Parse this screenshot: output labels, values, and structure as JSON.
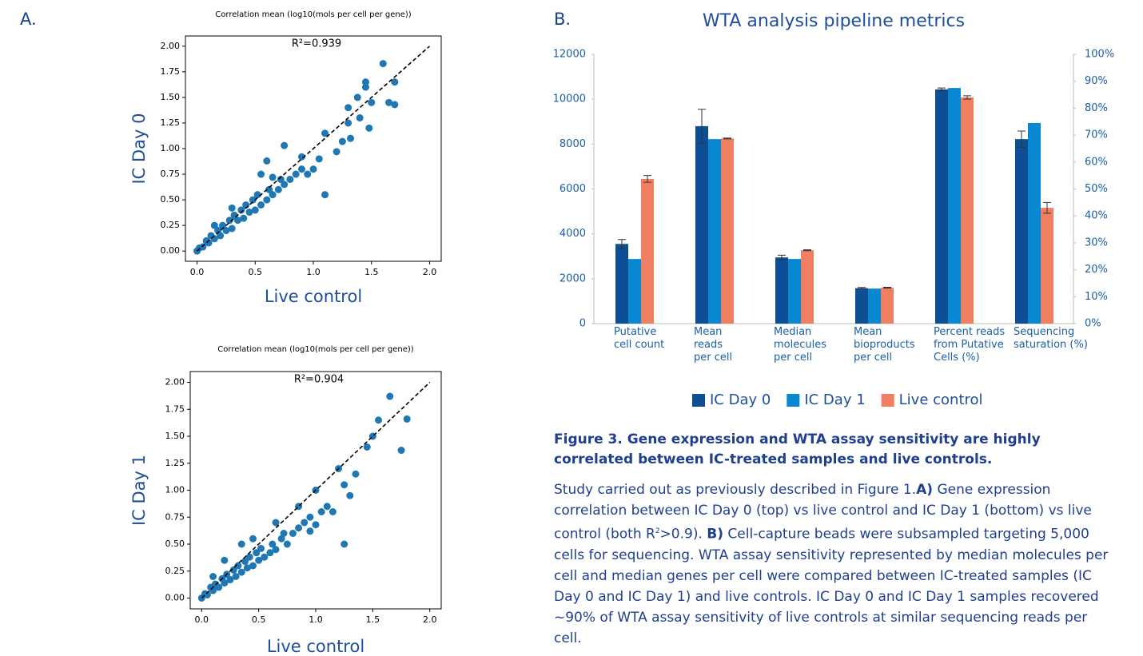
{
  "panel_a_label": "A.",
  "panel_b_label": "B.",
  "chart_data": [
    {
      "type": "scatter",
      "title": "Correlation mean (log10(mols per cell per gene))",
      "annotation": "R²=0.939",
      "x_label": "Live control",
      "y_label": "IC Day 0",
      "color": "#1f77b4",
      "xlim": [
        -0.1,
        2.1
      ],
      "ylim": [
        -0.1,
        2.1
      ],
      "xticks": [
        {
          "value": 0,
          "label": "0.0"
        },
        0.5,
        {
          "value": 1,
          "label": "1.0"
        },
        1.5,
        {
          "value": 2,
          "label": "2.0"
        }
      ],
      "yticks": [
        {
          "value": 0,
          "label": "0.00"
        },
        0.25,
        {
          "value": 0.5,
          "label": "0.50"
        },
        0.75,
        {
          "value": 1,
          "label": "1.00"
        },
        1.25,
        {
          "value": 1.5,
          "label": "1.50"
        },
        1.75,
        {
          "value": 2,
          "label": "2.00"
        }
      ],
      "diagonal": {
        "x": [
          0,
          2
        ],
        "y": [
          0,
          2
        ]
      },
      "x": [
        0,
        0.02,
        0.05,
        0.08,
        0.1,
        0.12,
        0.15,
        0.18,
        0.2,
        0.22,
        0.25,
        0.28,
        0.3,
        0.32,
        0.35,
        0.38,
        0.4,
        0.42,
        0.45,
        0.48,
        0.5,
        0.52,
        0.55,
        0.6,
        0.62,
        0.65,
        0.7,
        0.72,
        0.75,
        0.8,
        0.85,
        0.9,
        0.95,
        1.0,
        0.75,
        0.6,
        0.55,
        0.3,
        0.15,
        1.05,
        1.1,
        1.1,
        1.2,
        1.25,
        1.3,
        1.32,
        1.38,
        1.4,
        1.45,
        1.45,
        1.5,
        1.48,
        1.6,
        1.65,
        1.7,
        1.7,
        1.3,
        0.65,
        0.9
      ],
      "y": [
        0,
        0.03,
        0.04,
        0.1,
        0.08,
        0.15,
        0.12,
        0.2,
        0.15,
        0.25,
        0.2,
        0.3,
        0.22,
        0.35,
        0.3,
        0.4,
        0.32,
        0.45,
        0.38,
        0.5,
        0.4,
        0.55,
        0.45,
        0.5,
        0.6,
        0.55,
        0.6,
        0.7,
        0.65,
        0.7,
        0.75,
        0.8,
        0.75,
        0.8,
        1.03,
        0.88,
        0.75,
        0.42,
        0.25,
        0.9,
        0.55,
        1.15,
        0.97,
        1.07,
        1.25,
        1.1,
        1.5,
        1.3,
        1.6,
        1.65,
        1.45,
        1.2,
        1.83,
        1.45,
        1.65,
        1.43,
        1.4,
        0.72,
        0.92
      ]
    },
    {
      "type": "scatter",
      "title": "Correlation mean (log10(mols per cell per gene))",
      "annotation": "R²=0.904",
      "x_label": "Live control",
      "y_label": "IC Day 1",
      "color": "#1f77b4",
      "xlim": [
        -0.1,
        2.1
      ],
      "ylim": [
        -0.1,
        2.1
      ],
      "xticks": [
        {
          "value": 0,
          "label": "0.0"
        },
        0.5,
        {
          "value": 1,
          "label": "1.0"
        },
        1.5,
        {
          "value": 2,
          "label": "2.0"
        }
      ],
      "yticks": [
        {
          "value": 0,
          "label": "0.00"
        },
        0.25,
        {
          "value": 0.5,
          "label": "0.50"
        },
        0.75,
        {
          "value": 1,
          "label": "1.00"
        },
        1.25,
        {
          "value": 1.5,
          "label": "1.50"
        },
        1.75,
        {
          "value": 2,
          "label": "2.00"
        }
      ],
      "diagonal": {
        "x": [
          0,
          2
        ],
        "y": [
          0,
          2
        ]
      },
      "x": [
        0,
        0.03,
        0.05,
        0.08,
        0.1,
        0.12,
        0.15,
        0.18,
        0.2,
        0.22,
        0.25,
        0.28,
        0.3,
        0.32,
        0.35,
        0.38,
        0.4,
        0.42,
        0.45,
        0.48,
        0.5,
        0.52,
        0.55,
        0.6,
        0.62,
        0.65,
        0.7,
        0.72,
        0.75,
        0.8,
        0.85,
        0.9,
        0.95,
        1.0,
        0.45,
        0.35,
        0.2,
        0.1,
        0.65,
        1.05,
        1.1,
        1.15,
        1.2,
        1.25,
        1.25,
        1.3,
        1.35,
        1.45,
        1.5,
        1.55,
        1.65,
        1.75,
        1.8,
        1.0,
        0.85,
        0.95
      ],
      "y": [
        0,
        0.04,
        0.03,
        0.1,
        0.07,
        0.13,
        0.1,
        0.18,
        0.14,
        0.22,
        0.17,
        0.26,
        0.2,
        0.3,
        0.24,
        0.34,
        0.28,
        0.38,
        0.3,
        0.42,
        0.35,
        0.46,
        0.38,
        0.42,
        0.5,
        0.45,
        0.55,
        0.6,
        0.5,
        0.6,
        0.65,
        0.7,
        0.62,
        0.68,
        0.55,
        0.5,
        0.35,
        0.2,
        0.7,
        0.8,
        0.85,
        0.8,
        1.2,
        1.05,
        0.5,
        0.95,
        1.15,
        1.4,
        1.5,
        1.65,
        1.87,
        1.37,
        1.66,
        1.0,
        0.85,
        0.75
      ]
    },
    {
      "type": "bar",
      "title": "WTA analysis pipeline metrics",
      "categories": [
        "Putative\ncell count",
        "Mean\nreads\nper cell",
        "Median\nmolecules\nper cell",
        "Mean\nbioproducts\nper cell",
        "Percent reads\nfrom Putative\nCells (%)",
        "Sequencing\nsaturation (%)"
      ],
      "category_axis": [
        "y",
        "y",
        "y",
        "y",
        "y2",
        "y2"
      ],
      "series": [
        {
          "name": "IC Day 0",
          "color": "#0d4f94",
          "values": [
            3550,
            8800,
            2950,
            1580,
            87,
            68.5
          ],
          "errors": [
            200,
            750,
            100,
            30,
            0.5,
            3
          ]
        },
        {
          "name": "IC Day 1",
          "color": "#0a87d1",
          "values": [
            2880,
            8220,
            2880,
            1560,
            87.5,
            74.5
          ],
          "errors": [
            null,
            null,
            null,
            null,
            null,
            null
          ]
        },
        {
          "name": "Live control",
          "color": "#f07f62",
          "values": [
            6450,
            8250,
            3270,
            1600,
            84,
            43
          ],
          "errors": [
            150,
            20,
            20,
            20,
            0.6,
            2
          ]
        }
      ],
      "ylim": [
        0,
        12000
      ],
      "yticks": [
        0,
        2000,
        4000,
        6000,
        8000,
        10000,
        12000
      ],
      "y2lim": [
        0,
        100
      ],
      "y2ticks": [
        {
          "value": 0,
          "label": "0%"
        },
        {
          "value": 10,
          "label": "10%"
        },
        {
          "value": 20,
          "label": "20%"
        },
        {
          "value": 30,
          "label": "30%"
        },
        {
          "value": 40,
          "label": "40%"
        },
        {
          "value": 50,
          "label": "50%"
        },
        {
          "value": 60,
          "label": "60%"
        },
        {
          "value": 70,
          "label": "70%"
        },
        {
          "value": 80,
          "label": "80%"
        },
        {
          "value": 90,
          "label": "90%"
        },
        {
          "value": 100,
          "label": "100%"
        }
      ],
      "legend": "bottom"
    }
  ],
  "caption": {
    "title": "Figure 3. Gene expression and WTA assay sensitivity are highly correlated between IC-treated samples and live controls.",
    "body": [
      {
        "text": "Study carried out as previously described in Figure 1.",
        "style": "normal"
      },
      {
        "text": "A)",
        "style": "bold"
      },
      {
        "text": " Gene expression correlation between IC Day 0 (top) vs live control and IC Day 1 (bottom) vs live control (both R",
        "style": "normal"
      },
      {
        "text": "2",
        "style": "sup"
      },
      {
        "text": ">0.9). ",
        "style": "normal"
      },
      {
        "text": "B)",
        "style": "bold"
      },
      {
        "text": " Cell-capture beads were subsampled targeting 5,000 cells for sequencing. WTA assay sensitivity represented by median molecules per cell and median genes per cell were compared between IC-treated samples (IC Day 0 and IC Day 1) and live controls. IC Day 0 and IC Day 1 samples recovered ~90% of WTA assay sensitivity of live controls at similar sequencing reads per cell.",
        "style": "normal"
      }
    ]
  }
}
